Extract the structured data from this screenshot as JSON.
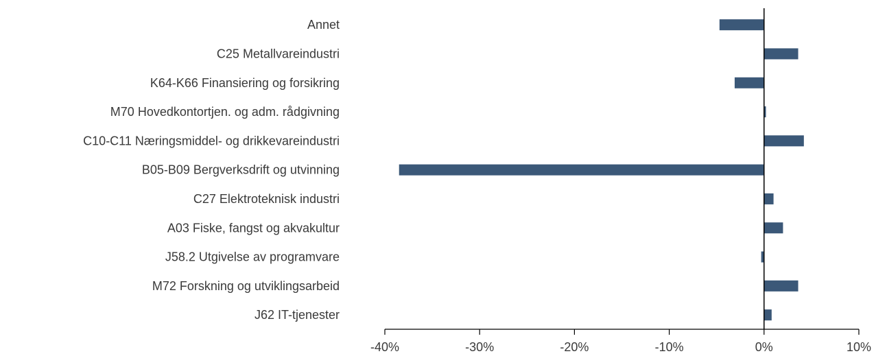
{
  "chart_data": {
    "type": "bar",
    "orientation": "horizontal",
    "categories": [
      "Annet",
      "C25 Metallvareindustri",
      "K64-K66 Finansiering og forsikring",
      "M70 Hovedkontortjen. og adm. rådgivning",
      "C10-C11 Næringsmiddel- og drikkevareindustri",
      "B05-B09 Bergverksdrift og utvinning",
      "C27 Elektroteknisk industri",
      "A03 Fiske, fangst og akvakultur",
      "J58.2 Utgivelse av programvare",
      "M72 Forskning og utviklingsarbeid",
      "J62 IT-tjenester"
    ],
    "values": [
      -4.7,
      3.6,
      -3.1,
      0.2,
      4.2,
      -38.5,
      1.0,
      2.0,
      -0.3,
      3.6,
      0.8
    ],
    "xlim": [
      -40,
      10
    ],
    "xticks": [
      -40,
      -30,
      -20,
      -10,
      0,
      10
    ],
    "xtick_labels": [
      "-40%",
      "-30%",
      "-20%",
      "-10%",
      "0%",
      "10%"
    ],
    "title": "",
    "xlabel": "",
    "ylabel": "",
    "bar_color": "#3b5878",
    "grid": false,
    "legend": "none"
  }
}
